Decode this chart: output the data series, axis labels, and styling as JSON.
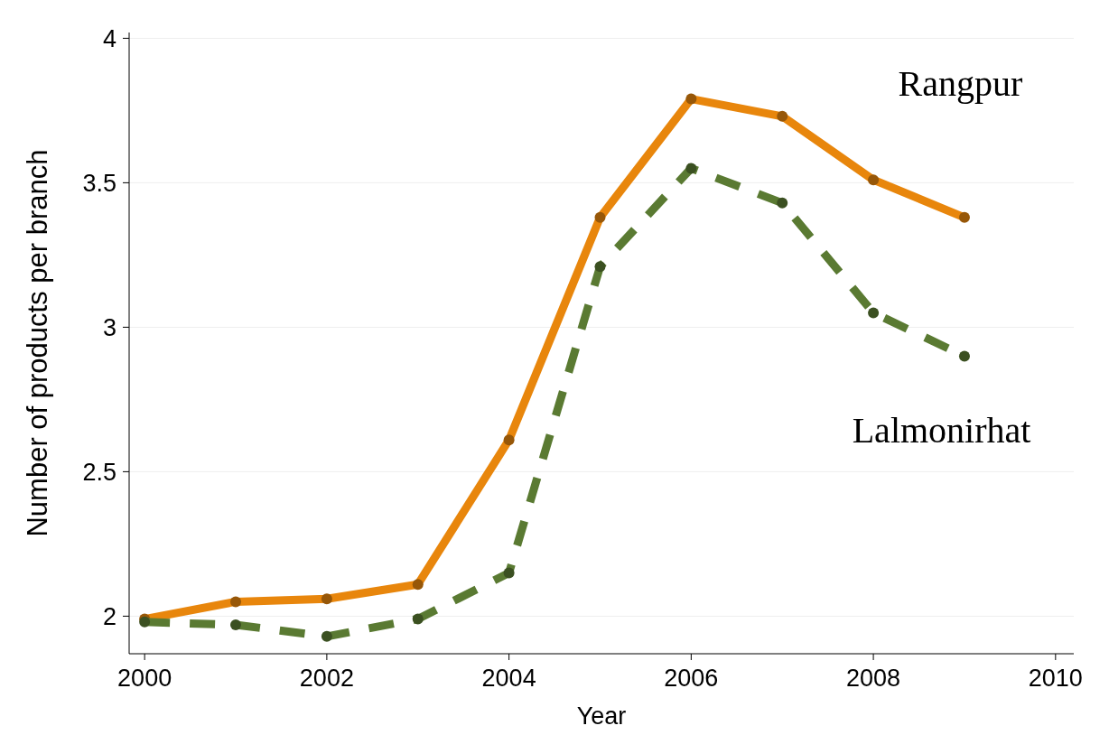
{
  "chart_data": {
    "type": "line",
    "xlabel": "Year",
    "ylabel": "Number of products per branch",
    "x": [
      2000,
      2001,
      2002,
      2003,
      2004,
      2005,
      2006,
      2007,
      2008,
      2009
    ],
    "series": [
      {
        "name": "Rangpur",
        "color": "#e8860c",
        "line_style": "solid",
        "values": [
          1.99,
          2.05,
          2.06,
          2.11,
          2.61,
          3.38,
          3.79,
          3.73,
          3.51,
          3.38
        ]
      },
      {
        "name": "Lalmonirhat",
        "color": "#5a7a32",
        "line_style": "dashed",
        "values": [
          1.98,
          1.97,
          1.93,
          1.99,
          2.15,
          3.21,
          3.55,
          3.43,
          3.05,
          2.9
        ]
      }
    ],
    "xlim": [
      1999.83,
      2010.2
    ],
    "xticks": [
      2000,
      2002,
      2004,
      2006,
      2008,
      2010
    ],
    "ylim": [
      1.87,
      4.02
    ],
    "yticks": [
      2,
      2.5,
      3,
      3.5,
      4
    ],
    "grid": "y",
    "marker": "circle"
  }
}
